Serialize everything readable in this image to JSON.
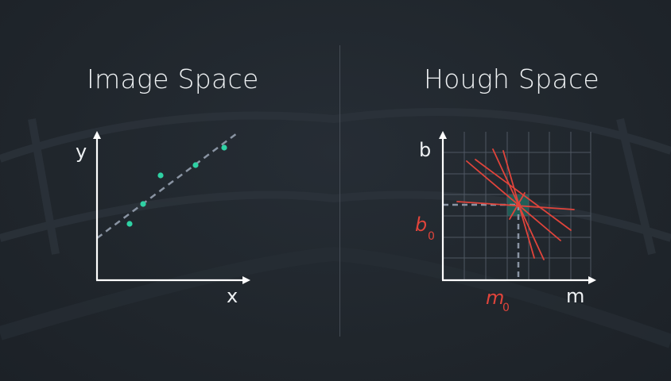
{
  "left_panel": {
    "title": "Image Space",
    "x_axis_label": "x",
    "y_axis_label": "y"
  },
  "right_panel": {
    "title": "Hough Space",
    "x_axis_label": "m",
    "y_axis_label": "b",
    "m0_label": "m",
    "m0_subscript": "0",
    "b0_label": "b",
    "b0_subscript": "0"
  },
  "colors": {
    "background": "#21272e",
    "text": "#eef1f3",
    "axis": "#ffffff",
    "points": "#2fd1a4",
    "fit_line": "#8a94a3",
    "hough_lines": "#e0443b",
    "highlight_cell": "#1f6f63",
    "grid": "#4f5762"
  }
}
